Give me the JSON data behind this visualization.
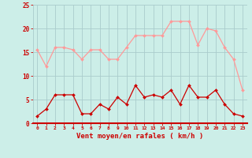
{
  "x": [
    0,
    1,
    2,
    3,
    4,
    5,
    6,
    7,
    8,
    9,
    10,
    11,
    12,
    13,
    14,
    15,
    16,
    17,
    18,
    19,
    20,
    21,
    22,
    23
  ],
  "wind_avg": [
    1.5,
    3,
    6,
    6,
    6,
    2,
    2,
    4,
    3,
    5.5,
    4,
    8,
    5.5,
    6,
    5.5,
    7,
    4,
    8,
    5.5,
    5.5,
    7,
    4,
    2,
    1.5
  ],
  "wind_gust": [
    15.5,
    12,
    16,
    16,
    15.5,
    13.5,
    15.5,
    15.5,
    13.5,
    13.5,
    16,
    18.5,
    18.5,
    18.5,
    18.5,
    21.5,
    21.5,
    21.5,
    16.5,
    20,
    19.5,
    16,
    13.5,
    7
  ],
  "avg_color": "#cc0000",
  "gust_color": "#ff9999",
  "bg_color": "#cceee8",
  "grid_color": "#aacccc",
  "xlabel": "Vent moyen/en rafales ( km/h )",
  "xlabel_color": "#cc0000",
  "tick_color": "#cc0000",
  "ylim": [
    0,
    25
  ],
  "yticks": [
    0,
    5,
    10,
    15,
    20,
    25
  ],
  "axis_line_color": "#cc0000"
}
